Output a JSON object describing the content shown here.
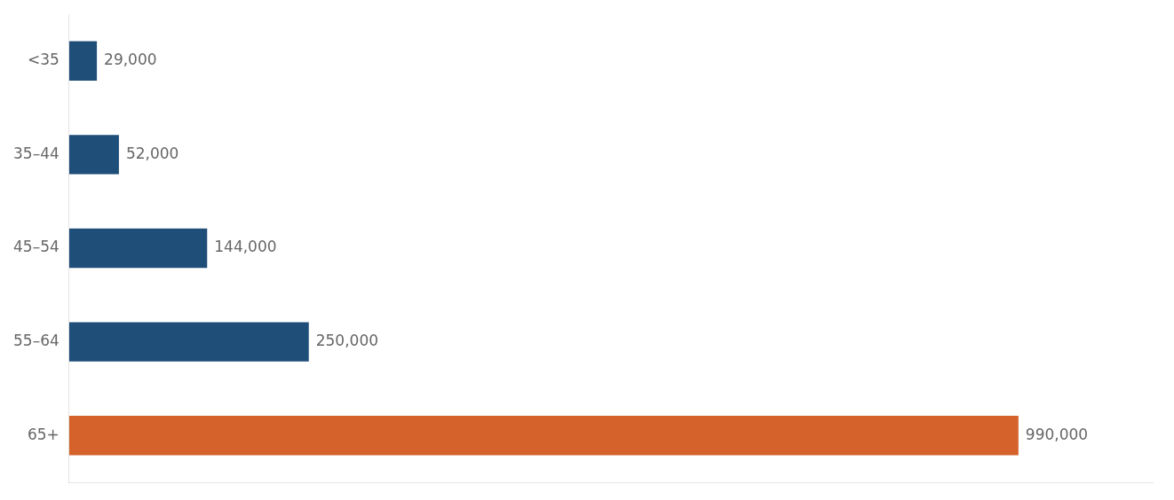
{
  "chart_data": {
    "type": "bar",
    "orientation": "horizontal",
    "categories": [
      "<35",
      "35–44",
      "45–54",
      "55–64",
      "65+"
    ],
    "values": [
      29000,
      52000,
      144000,
      250000,
      990000
    ],
    "value_labels": [
      "29,000",
      "52,000",
      "144,000",
      "250,000",
      "990,000"
    ],
    "colors": [
      "#1f4e79",
      "#1f4e79",
      "#1f4e79",
      "#1f4e79",
      "#d4622a"
    ],
    "xlim": [
      0,
      1130000
    ],
    "grid": false,
    "data_labels": true,
    "tick_labels": "y"
  }
}
